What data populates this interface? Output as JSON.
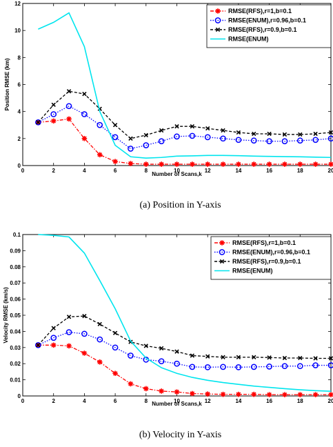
{
  "chart_data": [
    {
      "type": "line",
      "caption": "(a) Position in Y-axis",
      "xlabel": "Number of Scans,k",
      "ylabel": "Position RMSE (km)",
      "xlim": [
        0,
        20
      ],
      "ylim": [
        0,
        12
      ],
      "xticks": [
        "0",
        "2",
        "4",
        "6",
        "8",
        "10",
        "12",
        "14",
        "16",
        "18",
        "20"
      ],
      "yticks": [
        "0",
        "2",
        "4",
        "6",
        "8",
        "10",
        "12"
      ],
      "grid": false,
      "legend_position": "top-right",
      "series": [
        {
          "name": "RMSE(RFS),r=1,b=0.1",
          "color": "#ff0000",
          "marker": "star",
          "dash": "dashdot",
          "x": [
            1,
            2,
            3,
            4,
            5,
            6,
            7,
            8,
            9,
            10,
            11,
            12,
            13,
            14,
            15,
            16,
            17,
            18,
            19,
            20
          ],
          "y": [
            3.2,
            3.3,
            3.45,
            2.0,
            0.8,
            0.3,
            0.15,
            0.1,
            0.1,
            0.1,
            0.1,
            0.1,
            0.1,
            0.1,
            0.1,
            0.1,
            0.1,
            0.1,
            0.1,
            0.1
          ]
        },
        {
          "name": "RMSE(ENUM),r=0.96,b=0.1",
          "color": "#0000ff",
          "marker": "circle",
          "dash": "dotted",
          "x": [
            1,
            2,
            3,
            4,
            5,
            6,
            7,
            8,
            9,
            10,
            11,
            12,
            13,
            14,
            15,
            16,
            17,
            18,
            19,
            20
          ],
          "y": [
            3.2,
            3.8,
            4.4,
            3.8,
            3.0,
            2.1,
            1.25,
            1.5,
            1.8,
            2.15,
            2.2,
            2.1,
            2.0,
            1.9,
            1.85,
            1.8,
            1.8,
            1.85,
            1.9,
            2.0
          ]
        },
        {
          "name": "RMSE(RFS),r=0.9,b=0.1",
          "color": "#000000",
          "marker": "x",
          "dash": "dashed",
          "x": [
            1,
            2,
            3,
            4,
            5,
            6,
            7,
            8,
            9,
            10,
            11,
            12,
            13,
            14,
            15,
            16,
            17,
            18,
            19,
            20
          ],
          "y": [
            3.2,
            4.5,
            5.5,
            5.3,
            4.2,
            3.0,
            2.0,
            2.25,
            2.6,
            2.9,
            2.9,
            2.75,
            2.6,
            2.45,
            2.35,
            2.35,
            2.3,
            2.3,
            2.35,
            2.45
          ]
        },
        {
          "name": "RMSE(ENUM)",
          "color": "#00e5ee",
          "marker": "none",
          "dash": "solid",
          "x": [
            1,
            2,
            3,
            4,
            5,
            6,
            7,
            8,
            9,
            10,
            11,
            12,
            13,
            14,
            15,
            16,
            17,
            18,
            19,
            20
          ],
          "y": [
            10.1,
            10.6,
            11.3,
            8.8,
            4.0,
            1.5,
            0.65,
            0.55,
            0.6,
            0.7,
            0.72,
            0.75,
            0.75,
            0.73,
            0.7,
            0.68,
            0.66,
            0.65,
            0.62,
            0.6
          ]
        }
      ]
    },
    {
      "type": "line",
      "caption": "(b) Velocity in Y-axis",
      "xlabel": "Number of Scans,k",
      "ylabel": "Velocity RMSE (km/s)",
      "xlim": [
        0,
        20
      ],
      "ylim": [
        0,
        0.1
      ],
      "xticks": [
        "0",
        "2",
        "4",
        "6",
        "8",
        "10",
        "12",
        "14",
        "16",
        "18",
        "20"
      ],
      "yticks": [
        "0",
        "0.01",
        "0.02",
        "0.03",
        "0.04",
        "0.05",
        "0.06",
        "0.07",
        "0.08",
        "0.09",
        "0.1"
      ],
      "grid": false,
      "legend_position": "top-right",
      "series": [
        {
          "name": "RMSE(RFS),r=1,b=0.1",
          "color": "#ff0000",
          "marker": "star",
          "dash": "dashdot",
          "x": [
            1,
            2,
            3,
            4,
            5,
            6,
            7,
            8,
            9,
            10,
            11,
            12,
            13,
            14,
            15,
            16,
            17,
            18,
            19,
            20
          ],
          "y": [
            0.0315,
            0.0315,
            0.031,
            0.0265,
            0.021,
            0.014,
            0.0075,
            0.0045,
            0.003,
            0.0025,
            0.0015,
            0.0012,
            0.001,
            0.001,
            0.001,
            0.0008,
            0.0008,
            0.0008,
            0.0008,
            0.0008
          ]
        },
        {
          "name": "RMSE(ENUM),r=0.96,b=0.1",
          "color": "#0000ff",
          "marker": "circle",
          "dash": "dotted",
          "x": [
            1,
            2,
            3,
            4,
            5,
            6,
            7,
            8,
            9,
            10,
            11,
            12,
            13,
            14,
            15,
            16,
            17,
            18,
            19,
            20
          ],
          "y": [
            0.0315,
            0.036,
            0.0395,
            0.0385,
            0.035,
            0.03,
            0.025,
            0.0225,
            0.0215,
            0.02,
            0.018,
            0.0178,
            0.018,
            0.0178,
            0.018,
            0.0182,
            0.0185,
            0.0185,
            0.019,
            0.019
          ]
        },
        {
          "name": "RMSE(RFS),r=0.9,b=0.1",
          "color": "#000000",
          "marker": "x",
          "dash": "dashed",
          "x": [
            1,
            2,
            3,
            4,
            5,
            6,
            7,
            8,
            9,
            10,
            11,
            12,
            13,
            14,
            15,
            16,
            17,
            18,
            19,
            20
          ],
          "y": [
            0.0315,
            0.042,
            0.049,
            0.0495,
            0.0445,
            0.039,
            0.0335,
            0.031,
            0.0295,
            0.0275,
            0.025,
            0.0245,
            0.024,
            0.024,
            0.024,
            0.0238,
            0.0235,
            0.0235,
            0.0233,
            0.0233
          ]
        },
        {
          "name": "RMSE(ENUM)",
          "color": "#00e5ee",
          "marker": "none",
          "dash": "solid",
          "x": [
            1,
            2,
            3,
            4,
            5,
            6,
            7,
            8,
            9,
            10,
            11,
            12,
            13,
            14,
            15,
            16,
            17,
            18,
            19,
            20
          ],
          "y": [
            0.1,
            0.0995,
            0.0985,
            0.0885,
            0.0715,
            0.054,
            0.034,
            0.0235,
            0.0175,
            0.014,
            0.0115,
            0.0097,
            0.0083,
            0.0072,
            0.0061,
            0.0053,
            0.0045,
            0.0038,
            0.0033,
            0.0029
          ]
        }
      ]
    }
  ]
}
